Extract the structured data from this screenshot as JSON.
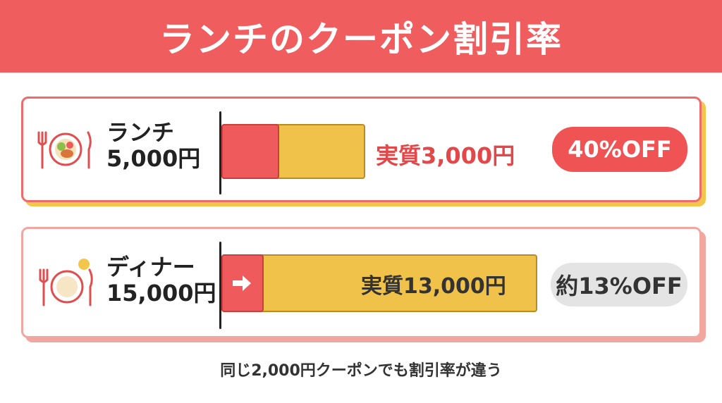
{
  "header": {
    "title": "ランチのクーポン割引率"
  },
  "lunch": {
    "name": "ランチ",
    "price": "5,000円",
    "effective": "実質3,000円",
    "discount": "40%OFF",
    "discount_fraction": 0.4
  },
  "dinner": {
    "name": "ディナー",
    "price": "15,000円",
    "effective": "実質13,000円",
    "discount": "約13%OFF",
    "discount_fraction": 0.13
  },
  "footer": {
    "note": "同じ2,000円クーポンでも割引率が違う"
  },
  "colors": {
    "header": "#f05d5f",
    "coupon_red": "#ef5a5c",
    "remaining_yellow": "#f0c24a",
    "pill_gray": "#e4e4e4"
  },
  "icons": [
    "plate-with-food-icon",
    "plate-with-cutlery-icon",
    "arrow-right-icon"
  ]
}
